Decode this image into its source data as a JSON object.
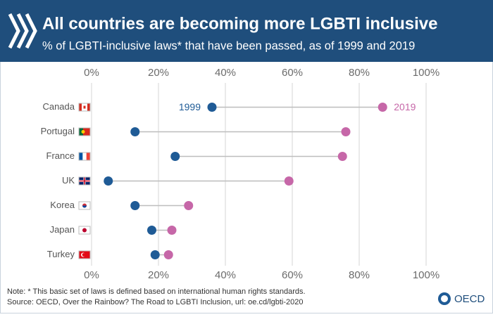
{
  "chart_data": {
    "type": "dumbbell",
    "title": "All countries are becoming more LGBTI inclusive",
    "subtitle": "% of LGBTI-inclusive laws* that have been passed, as of 1999 and 2019",
    "categories": [
      "Canada",
      "Portugal",
      "France",
      "UK",
      "Korea",
      "Japan",
      "Turkey"
    ],
    "series": [
      {
        "name": "1999",
        "color": "#1f5b96",
        "values": [
          36,
          13,
          25,
          5,
          13,
          18,
          19
        ]
      },
      {
        "name": "2019",
        "color": "#c667a8",
        "values": [
          87,
          76,
          75,
          59,
          29,
          24,
          23
        ]
      }
    ],
    "xlim": [
      0,
      100
    ],
    "xticks": [
      {
        "value": 0,
        "label": "0%"
      },
      {
        "value": 20,
        "label": "20%"
      },
      {
        "value": 40,
        "label": "40%"
      },
      {
        "value": 60,
        "label": "60%"
      },
      {
        "value": 80,
        "label": "80%"
      },
      {
        "value": 100,
        "label": "100%"
      }
    ],
    "grid": true,
    "note": "Note: * This basic set of laws is defined based on international human rights standards.",
    "source": "Source: OECD, Over the Rainbow? The Road to LGBTI Inclusion, url: oe.cd/lgbti-2020",
    "logo_text": "OECD"
  }
}
